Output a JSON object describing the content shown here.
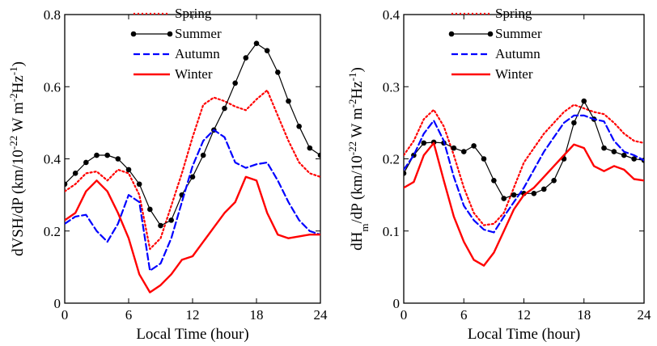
{
  "chart_data": [
    {
      "type": "line",
      "title": "",
      "xlabel": "Local Time (hour)",
      "ylabel": "dVSH/dP (km/10^-22 W m^-2 Hz^-1)",
      "ylabel_parts": {
        "main": "dVSH/dP (km/10",
        "exp1": "-22",
        "mid1": " W m",
        "exp2": "-2",
        "mid2": "Hz",
        "exp3": "-1",
        "end": ")"
      },
      "xlim": [
        0,
        24
      ],
      "ylim": [
        0,
        0.8
      ],
      "xticks": [
        "0",
        "6",
        "12",
        "18",
        "24"
      ],
      "yticks": [
        "0",
        "0.2",
        "0.4",
        "0.6",
        "0.8"
      ],
      "xtick_values": [
        0,
        6,
        12,
        18,
        24
      ],
      "ytick_values": [
        0,
        0.2,
        0.4,
        0.6,
        0.8
      ],
      "grid": false,
      "legend_position": "top-center",
      "series": [
        {
          "name": "Spring",
          "color": "#ff0000",
          "style": "dotted",
          "x": [
            0,
            1,
            2,
            3,
            4,
            5,
            6,
            7,
            8,
            9,
            10,
            11,
            12,
            13,
            14,
            15,
            16,
            17,
            18,
            19,
            20,
            21,
            22,
            23,
            24
          ],
          "values": [
            0.31,
            0.33,
            0.36,
            0.365,
            0.34,
            0.37,
            0.36,
            0.3,
            0.15,
            0.18,
            0.27,
            0.36,
            0.46,
            0.55,
            0.57,
            0.56,
            0.545,
            0.535,
            0.565,
            0.59,
            0.52,
            0.45,
            0.39,
            0.36,
            0.35
          ]
        },
        {
          "name": "Summer",
          "color": "#000000",
          "style": "solid-marker",
          "x": [
            0,
            1,
            2,
            3,
            4,
            5,
            6,
            7,
            8,
            9,
            10,
            11,
            12,
            13,
            14,
            15,
            16,
            17,
            18,
            19,
            20,
            21,
            22,
            23,
            24
          ],
          "values": [
            0.33,
            0.36,
            0.39,
            0.41,
            0.41,
            0.4,
            0.37,
            0.33,
            0.26,
            0.215,
            0.23,
            0.3,
            0.35,
            0.41,
            0.48,
            0.54,
            0.61,
            0.68,
            0.72,
            0.7,
            0.64,
            0.56,
            0.49,
            0.43,
            0.41
          ]
        },
        {
          "name": "Autumn",
          "color": "#0000ff",
          "style": "dashed",
          "x": [
            0,
            1,
            2,
            3,
            4,
            5,
            6,
            7,
            8,
            9,
            10,
            11,
            12,
            13,
            14,
            15,
            16,
            17,
            18,
            19,
            20,
            21,
            22,
            23,
            24
          ],
          "values": [
            0.22,
            0.24,
            0.245,
            0.2,
            0.17,
            0.22,
            0.3,
            0.28,
            0.09,
            0.11,
            0.18,
            0.28,
            0.38,
            0.45,
            0.48,
            0.46,
            0.39,
            0.375,
            0.385,
            0.39,
            0.34,
            0.28,
            0.23,
            0.2,
            0.19
          ]
        },
        {
          "name": "Winter",
          "color": "#ff0000",
          "style": "solid",
          "x": [
            0,
            1,
            2,
            3,
            4,
            5,
            6,
            7,
            8,
            9,
            10,
            11,
            12,
            13,
            14,
            15,
            16,
            17,
            18,
            19,
            20,
            21,
            22,
            23,
            24
          ],
          "values": [
            0.23,
            0.25,
            0.31,
            0.34,
            0.31,
            0.25,
            0.18,
            0.08,
            0.03,
            0.05,
            0.08,
            0.12,
            0.13,
            0.17,
            0.21,
            0.25,
            0.28,
            0.35,
            0.34,
            0.25,
            0.19,
            0.18,
            0.185,
            0.19,
            0.19
          ]
        }
      ]
    },
    {
      "type": "line",
      "title": "",
      "xlabel": "Local Time (hour)",
      "ylabel": "dHm/dP (km/10^-22 W m^-2 Hz^-1)",
      "ylabel_parts": {
        "main": "dH",
        "sub": "m",
        "main2": "/dP (km/10",
        "exp1": "-22",
        "mid1": " W m",
        "exp2": "-2",
        "mid2": "Hz",
        "exp3": "-1",
        "end": ")"
      },
      "xlim": [
        0,
        24
      ],
      "ylim": [
        0,
        0.4
      ],
      "xticks": [
        "0",
        "6",
        "12",
        "18",
        "24"
      ],
      "yticks": [
        "0",
        "0.1",
        "0.2",
        "0.3",
        "0.4"
      ],
      "xtick_values": [
        0,
        6,
        12,
        18,
        24
      ],
      "ytick_values": [
        0,
        0.1,
        0.2,
        0.3,
        0.4
      ],
      "grid": false,
      "legend_position": "top-center",
      "series": [
        {
          "name": "Spring",
          "color": "#ff0000",
          "style": "dotted",
          "x": [
            0,
            1,
            2,
            3,
            4,
            5,
            6,
            7,
            8,
            9,
            10,
            11,
            12,
            13,
            14,
            15,
            16,
            17,
            18,
            19,
            20,
            21,
            22,
            23,
            24
          ],
          "values": [
            0.205,
            0.225,
            0.255,
            0.268,
            0.245,
            0.205,
            0.16,
            0.125,
            0.108,
            0.11,
            0.125,
            0.16,
            0.195,
            0.215,
            0.235,
            0.25,
            0.265,
            0.275,
            0.27,
            0.265,
            0.262,
            0.25,
            0.235,
            0.225,
            0.222
          ]
        },
        {
          "name": "Summer",
          "color": "#000000",
          "style": "solid-marker",
          "x": [
            0,
            1,
            2,
            3,
            4,
            5,
            6,
            7,
            8,
            9,
            10,
            11,
            12,
            13,
            14,
            15,
            16,
            17,
            18,
            19,
            20,
            21,
            22,
            23,
            24
          ],
          "values": [
            0.18,
            0.205,
            0.222,
            0.223,
            0.222,
            0.215,
            0.21,
            0.218,
            0.2,
            0.17,
            0.145,
            0.15,
            0.152,
            0.152,
            0.158,
            0.17,
            0.2,
            0.25,
            0.28,
            0.255,
            0.215,
            0.21,
            0.205,
            0.2,
            0.198
          ]
        },
        {
          "name": "Autumn",
          "color": "#0000ff",
          "style": "dashed",
          "x": [
            0,
            1,
            2,
            3,
            4,
            5,
            6,
            7,
            8,
            9,
            10,
            11,
            12,
            13,
            14,
            15,
            16,
            17,
            18,
            19,
            20,
            21,
            22,
            23,
            24
          ],
          "values": [
            0.185,
            0.205,
            0.235,
            0.253,
            0.225,
            0.175,
            0.135,
            0.115,
            0.102,
            0.098,
            0.12,
            0.14,
            0.16,
            0.185,
            0.21,
            0.23,
            0.25,
            0.26,
            0.26,
            0.255,
            0.252,
            0.225,
            0.21,
            0.205,
            0.198
          ]
        },
        {
          "name": "Winter",
          "color": "#ff0000",
          "style": "solid",
          "x": [
            0,
            1,
            2,
            3,
            4,
            5,
            6,
            7,
            8,
            9,
            10,
            11,
            12,
            13,
            14,
            15,
            16,
            17,
            18,
            19,
            20,
            21,
            22,
            23,
            24
          ],
          "values": [
            0.16,
            0.168,
            0.205,
            0.222,
            0.17,
            0.12,
            0.085,
            0.06,
            0.052,
            0.07,
            0.1,
            0.13,
            0.15,
            0.16,
            0.175,
            0.19,
            0.205,
            0.22,
            0.215,
            0.19,
            0.183,
            0.19,
            0.185,
            0.172,
            0.17
          ]
        }
      ]
    }
  ]
}
